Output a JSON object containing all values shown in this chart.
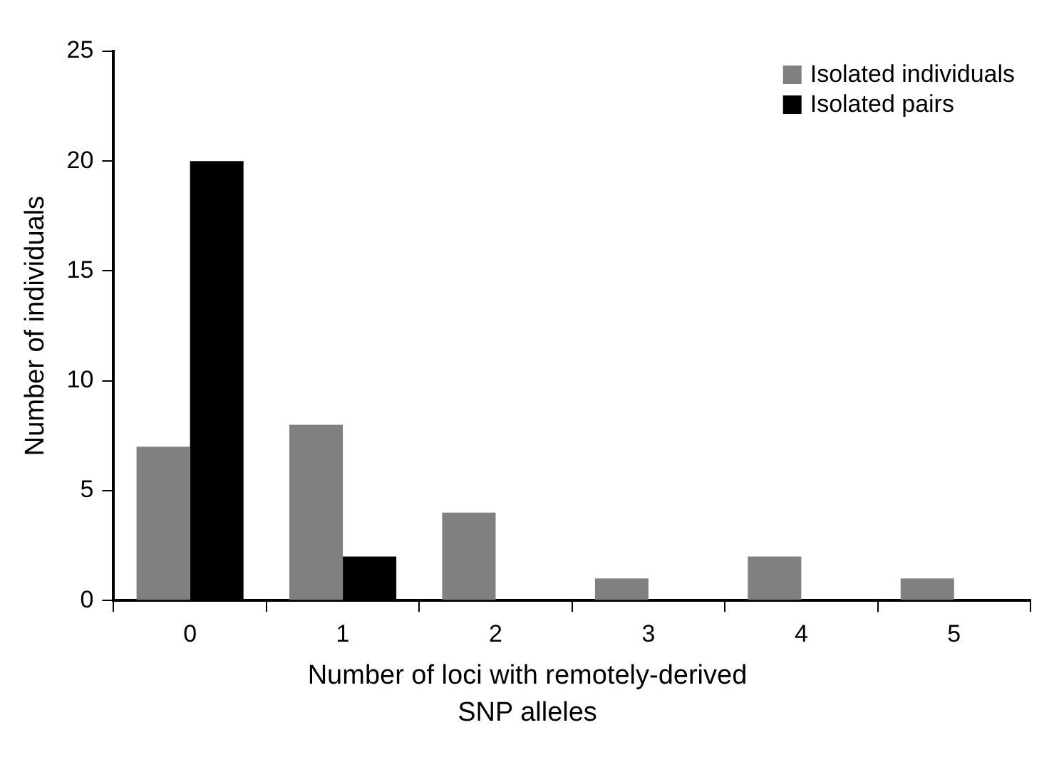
{
  "chart_data": {
    "type": "bar",
    "xlabel": "Number of loci with remotely-derived SNP alleles",
    "ylabel": "Number of individuals",
    "categories": [
      "0",
      "1",
      "2",
      "3",
      "4",
      "5"
    ],
    "series": [
      {
        "name": "Isolated individuals",
        "color": "#808080",
        "values": [
          7,
          8,
          4,
          1,
          2,
          1
        ]
      },
      {
        "name": "Isolated pairs",
        "color": "#000000",
        "values": [
          20,
          2,
          0,
          0,
          0,
          0
        ]
      }
    ],
    "ylim": [
      0,
      25
    ],
    "yticks": [
      0,
      5,
      10,
      15,
      20,
      25
    ],
    "grid": false,
    "legend": "top right"
  }
}
